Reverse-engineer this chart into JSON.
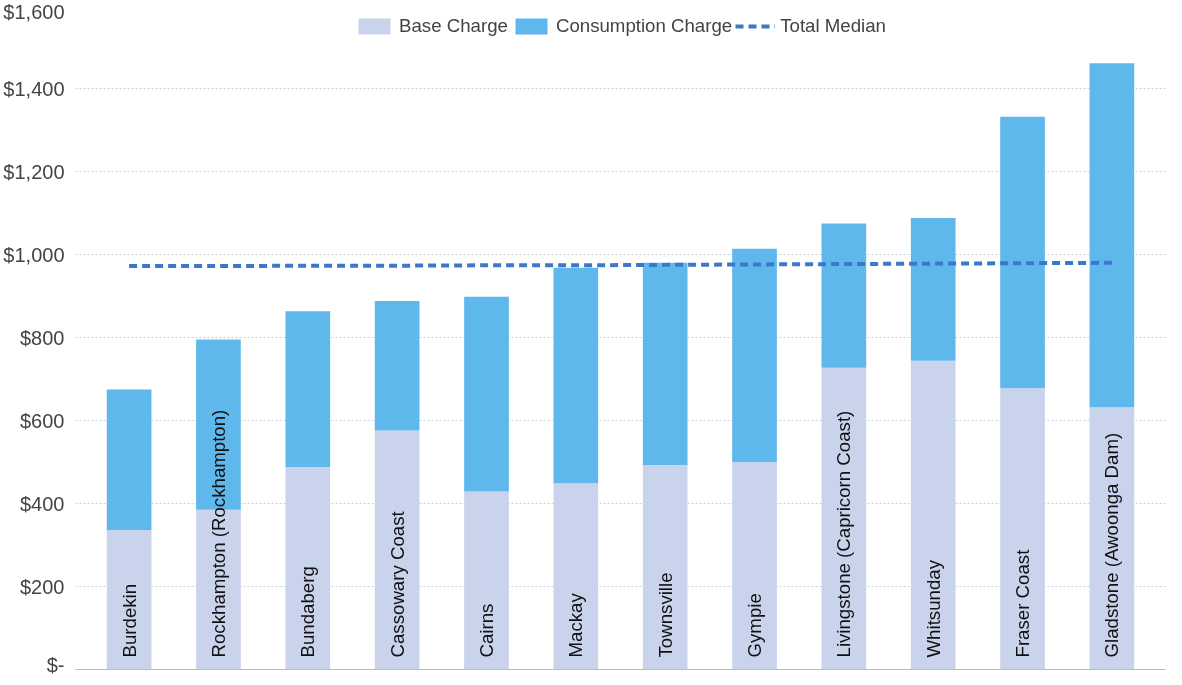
{
  "chart_data": {
    "type": "bar",
    "stacked": true,
    "categories": [
      "Burdekin",
      "Rockhampton (Rockhampton)",
      "Bundaberg",
      "Cassowary Coast",
      "Cairns",
      "Mackay",
      "Townsville",
      "Gympie",
      "Livingstone (Capricorn Coast)",
      "Whitsunday",
      "Fraser Coast",
      "Gladstone (Awoonga Dam)"
    ],
    "series": [
      {
        "name": "Base Charge",
        "color": "#c9d3ec",
        "values": [
          336,
          385,
          488,
          576,
          429,
          449,
          493,
          500,
          727,
          744,
          678,
          632
        ]
      },
      {
        "name": "Consumption Charge",
        "color": "#5fb8ec",
        "values": [
          339,
          410,
          375,
          312,
          469,
          519,
          487,
          514,
          348,
          344,
          654,
          829
        ]
      },
      {
        "name": "Total Median",
        "type": "line",
        "line_style": "dashed",
        "color": "#3a78c9",
        "values": [
          972,
          972,
          973,
          973,
          974,
          974,
          975,
          976,
          977,
          978,
          979,
          980
        ]
      }
    ],
    "ylim": [
      0,
      1600
    ],
    "yticks": [
      {
        "value": 0,
        "label": "$-"
      },
      {
        "value": 200,
        "label": "$200"
      },
      {
        "value": 400,
        "label": "$400"
      },
      {
        "value": 600,
        "label": "$600"
      },
      {
        "value": 800,
        "label": "$800"
      },
      {
        "value": 1000,
        "label": "$1,000"
      },
      {
        "value": 1200,
        "label": "$1,200"
      },
      {
        "value": 1400,
        "label": "$1,400"
      },
      {
        "value": 1600,
        "label": "$1,600"
      }
    ],
    "grid": "y",
    "legend": "top",
    "tick_labels": "y"
  }
}
